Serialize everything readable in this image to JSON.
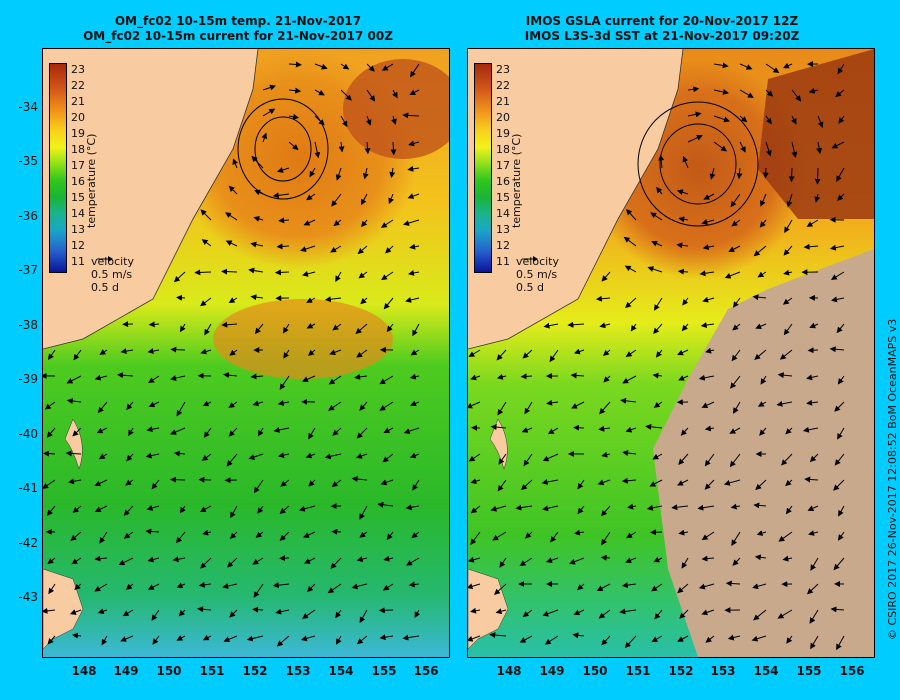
{
  "left_panel": {
    "title_line1": "OM_fc02 10-15m temp. 21-Nov-2017",
    "title_line2": "OM_fc02 10-15m current for 21-Nov-2017 00Z"
  },
  "right_panel": {
    "title_line1": "IMOS GSLA current for 20-Nov-2017 12Z",
    "title_line2": "IMOS L3S-3d SST at 21-Nov-2017 09:20Z"
  },
  "colorbar": {
    "labels": [
      "23",
      "22",
      "21",
      "20",
      "19",
      "18",
      "17",
      "16",
      "15",
      "14",
      "13",
      "12",
      "11"
    ],
    "title": "temperature (°C)"
  },
  "velocity_key": {
    "title": "velocity",
    "speed": "0.5 m/s",
    "duration": "0.5 d"
  },
  "axes": {
    "lat_labels": [
      "-34",
      "-35",
      "-36",
      "-37",
      "-38",
      "-39",
      "-40",
      "-41",
      "-42",
      "-43"
    ],
    "lon_labels": [
      "148",
      "149",
      "150",
      "151",
      "152",
      "153",
      "154",
      "155",
      "156"
    ]
  },
  "credit": "© CSIRO 2017   26-Nov-2017 12:08:52 BoM OceanMAPS v3",
  "colors": {
    "background": "#00ccff",
    "land": "#f8cba0",
    "cloud": "#c9a98c",
    "warm": "#d2691e",
    "cool": "#22bb33"
  }
}
